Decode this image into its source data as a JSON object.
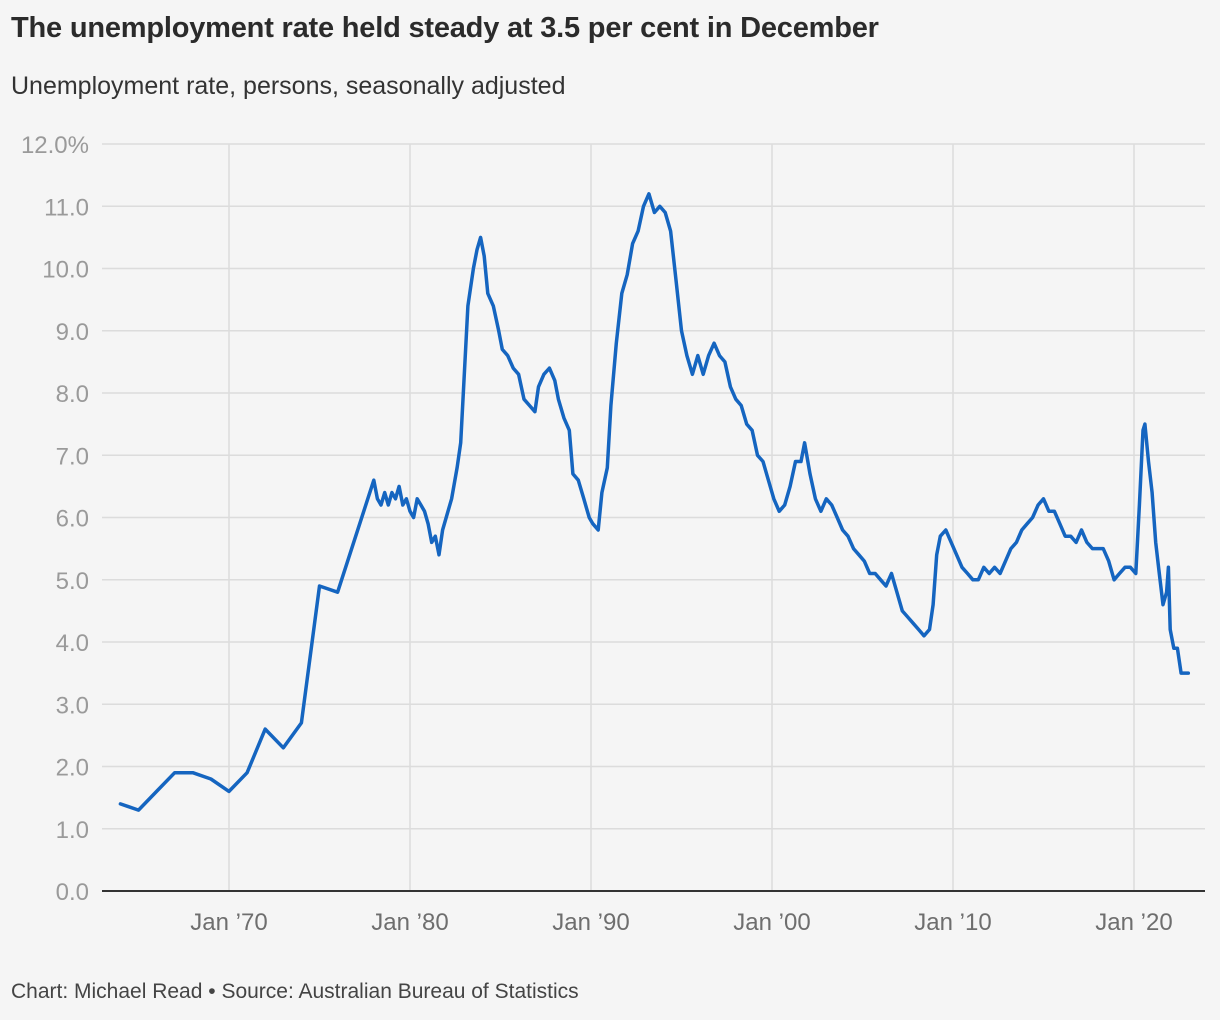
{
  "title": "The unemployment rate held steady at 3.5 per cent in December",
  "subtitle": "Unemployment rate, persons, seasonally adjusted",
  "footer": "Chart: Michael Read • Source: Australian Bureau of Statistics",
  "colors": {
    "line": "#1565c0",
    "grid": "#dcdcdc",
    "axis": "#333333",
    "background": "#f5f5f5"
  },
  "chart_data": {
    "type": "line",
    "title": "The unemployment rate held steady at 3.5 per cent in December",
    "subtitle": "Unemployment rate, persons, seasonally adjusted",
    "xlabel": "",
    "ylabel": "",
    "xlim": [
      1963.0,
      2023.0
    ],
    "ylim": [
      0,
      12
    ],
    "grid": true,
    "legend": "none",
    "y_ticks": [
      0,
      1,
      2,
      3,
      4,
      5,
      6,
      7,
      8,
      9,
      10,
      11,
      12
    ],
    "y_tick_labels": [
      "0.0",
      "1.0",
      "2.0",
      "3.0",
      "4.0",
      "5.0",
      "6.0",
      "7.0",
      "8.0",
      "9.0",
      "10.0",
      "11.0",
      "12.0%"
    ],
    "x_ticks": [
      1970,
      1980,
      1990,
      2000,
      2010,
      2020
    ],
    "x_tick_labels": [
      "Jan ’70",
      "Jan ’80",
      "Jan ’90",
      "Jan ’00",
      "Jan ’10",
      "Jan ’20"
    ],
    "series": [
      {
        "points": [
          [
            1964.0,
            1.4
          ],
          [
            1965.0,
            1.3
          ],
          [
            1966.0,
            1.6
          ],
          [
            1967.0,
            1.9
          ],
          [
            1968.0,
            1.9
          ],
          [
            1969.0,
            1.8
          ],
          [
            1970.0,
            1.6
          ],
          [
            1971.0,
            1.9
          ],
          [
            1972.0,
            2.6
          ],
          [
            1973.0,
            2.3
          ],
          [
            1974.0,
            2.7
          ],
          [
            1975.0,
            4.9
          ],
          [
            1976.0,
            4.8
          ],
          [
            1977.0,
            5.7
          ],
          [
            1978.0,
            6.6
          ],
          [
            1978.2,
            6.3
          ],
          [
            1978.4,
            6.2
          ],
          [
            1978.6,
            6.4
          ],
          [
            1978.8,
            6.2
          ],
          [
            1979.0,
            6.4
          ],
          [
            1979.2,
            6.3
          ],
          [
            1979.4,
            6.5
          ],
          [
            1979.6,
            6.2
          ],
          [
            1979.8,
            6.3
          ],
          [
            1980.0,
            6.1
          ],
          [
            1980.2,
            6.0
          ],
          [
            1980.4,
            6.3
          ],
          [
            1980.6,
            6.2
          ],
          [
            1980.8,
            6.1
          ],
          [
            1981.0,
            5.9
          ],
          [
            1981.2,
            5.6
          ],
          [
            1981.4,
            5.7
          ],
          [
            1981.6,
            5.4
          ],
          [
            1981.8,
            5.8
          ],
          [
            1982.0,
            6.0
          ],
          [
            1982.3,
            6.3
          ],
          [
            1982.6,
            6.8
          ],
          [
            1982.8,
            7.2
          ],
          [
            1983.0,
            8.3
          ],
          [
            1983.2,
            9.4
          ],
          [
            1983.5,
            10.0
          ],
          [
            1983.7,
            10.3
          ],
          [
            1983.9,
            10.5
          ],
          [
            1984.1,
            10.2
          ],
          [
            1984.3,
            9.6
          ],
          [
            1984.6,
            9.4
          ],
          [
            1984.9,
            9.0
          ],
          [
            1985.1,
            8.7
          ],
          [
            1985.4,
            8.6
          ],
          [
            1985.7,
            8.4
          ],
          [
            1986.0,
            8.3
          ],
          [
            1986.3,
            7.9
          ],
          [
            1986.6,
            7.8
          ],
          [
            1986.9,
            7.7
          ],
          [
            1987.1,
            8.1
          ],
          [
            1987.4,
            8.3
          ],
          [
            1987.7,
            8.4
          ],
          [
            1988.0,
            8.2
          ],
          [
            1988.2,
            7.9
          ],
          [
            1988.5,
            7.6
          ],
          [
            1988.8,
            7.4
          ],
          [
            1989.0,
            6.7
          ],
          [
            1989.3,
            6.6
          ],
          [
            1989.6,
            6.3
          ],
          [
            1989.9,
            6.0
          ],
          [
            1990.1,
            5.9
          ],
          [
            1990.4,
            5.8
          ],
          [
            1990.6,
            6.4
          ],
          [
            1990.9,
            6.8
          ],
          [
            1991.1,
            7.8
          ],
          [
            1991.4,
            8.8
          ],
          [
            1991.7,
            9.6
          ],
          [
            1992.0,
            9.9
          ],
          [
            1992.3,
            10.4
          ],
          [
            1992.6,
            10.6
          ],
          [
            1992.9,
            11.0
          ],
          [
            1993.2,
            11.2
          ],
          [
            1993.5,
            10.9
          ],
          [
            1993.8,
            11.0
          ],
          [
            1994.1,
            10.9
          ],
          [
            1994.4,
            10.6
          ],
          [
            1994.7,
            9.8
          ],
          [
            1995.0,
            9.0
          ],
          [
            1995.3,
            8.6
          ],
          [
            1995.6,
            8.3
          ],
          [
            1995.9,
            8.6
          ],
          [
            1996.2,
            8.3
          ],
          [
            1996.5,
            8.6
          ],
          [
            1996.8,
            8.8
          ],
          [
            1997.1,
            8.6
          ],
          [
            1997.4,
            8.5
          ],
          [
            1997.7,
            8.1
          ],
          [
            1998.0,
            7.9
          ],
          [
            1998.3,
            7.8
          ],
          [
            1998.6,
            7.5
          ],
          [
            1998.9,
            7.4
          ],
          [
            1999.2,
            7.0
          ],
          [
            1999.5,
            6.9
          ],
          [
            1999.8,
            6.6
          ],
          [
            2000.1,
            6.3
          ],
          [
            2000.4,
            6.1
          ],
          [
            2000.7,
            6.2
          ],
          [
            2001.0,
            6.5
          ],
          [
            2001.3,
            6.9
          ],
          [
            2001.6,
            6.9
          ],
          [
            2001.8,
            7.2
          ],
          [
            2002.1,
            6.7
          ],
          [
            2002.4,
            6.3
          ],
          [
            2002.7,
            6.1
          ],
          [
            2003.0,
            6.3
          ],
          [
            2003.3,
            6.2
          ],
          [
            2003.6,
            6.0
          ],
          [
            2003.9,
            5.8
          ],
          [
            2004.2,
            5.7
          ],
          [
            2004.5,
            5.5
          ],
          [
            2004.8,
            5.4
          ],
          [
            2005.1,
            5.3
          ],
          [
            2005.4,
            5.1
          ],
          [
            2005.7,
            5.1
          ],
          [
            2006.0,
            5.0
          ],
          [
            2006.3,
            4.9
          ],
          [
            2006.6,
            5.1
          ],
          [
            2006.9,
            4.8
          ],
          [
            2007.2,
            4.5
          ],
          [
            2007.5,
            4.4
          ],
          [
            2007.8,
            4.3
          ],
          [
            2008.1,
            4.2
          ],
          [
            2008.4,
            4.1
          ],
          [
            2008.7,
            4.2
          ],
          [
            2008.9,
            4.6
          ],
          [
            2009.1,
            5.4
          ],
          [
            2009.3,
            5.7
          ],
          [
            2009.6,
            5.8
          ],
          [
            2009.9,
            5.6
          ],
          [
            2010.2,
            5.4
          ],
          [
            2010.5,
            5.2
          ],
          [
            2010.8,
            5.1
          ],
          [
            2011.1,
            5.0
          ],
          [
            2011.4,
            5.0
          ],
          [
            2011.7,
            5.2
          ],
          [
            2012.0,
            5.1
          ],
          [
            2012.3,
            5.2
          ],
          [
            2012.6,
            5.1
          ],
          [
            2012.9,
            5.3
          ],
          [
            2013.2,
            5.5
          ],
          [
            2013.5,
            5.6
          ],
          [
            2013.8,
            5.8
          ],
          [
            2014.1,
            5.9
          ],
          [
            2014.4,
            6.0
          ],
          [
            2014.7,
            6.2
          ],
          [
            2015.0,
            6.3
          ],
          [
            2015.3,
            6.1
          ],
          [
            2015.6,
            6.1
          ],
          [
            2015.9,
            5.9
          ],
          [
            2016.2,
            5.7
          ],
          [
            2016.5,
            5.7
          ],
          [
            2016.8,
            5.6
          ],
          [
            2017.1,
            5.8
          ],
          [
            2017.4,
            5.6
          ],
          [
            2017.7,
            5.5
          ],
          [
            2018.0,
            5.5
          ],
          [
            2018.3,
            5.5
          ],
          [
            2018.6,
            5.3
          ],
          [
            2018.9,
            5.0
          ],
          [
            2019.2,
            5.1
          ],
          [
            2019.5,
            5.2
          ],
          [
            2019.8,
            5.2
          ],
          [
            2020.1,
            5.1
          ],
          [
            2020.3,
            6.2
          ],
          [
            2020.5,
            7.4
          ],
          [
            2020.6,
            7.5
          ],
          [
            2020.8,
            6.9
          ],
          [
            2021.0,
            6.4
          ],
          [
            2021.2,
            5.6
          ],
          [
            2021.4,
            5.1
          ],
          [
            2021.6,
            4.6
          ],
          [
            2021.8,
            4.8
          ],
          [
            2021.9,
            5.2
          ],
          [
            2022.0,
            4.2
          ],
          [
            2022.2,
            3.9
          ],
          [
            2022.4,
            3.9
          ],
          [
            2022.6,
            3.5
          ],
          [
            2022.8,
            3.5
          ],
          [
            2023.0,
            3.5
          ]
        ]
      }
    ]
  }
}
